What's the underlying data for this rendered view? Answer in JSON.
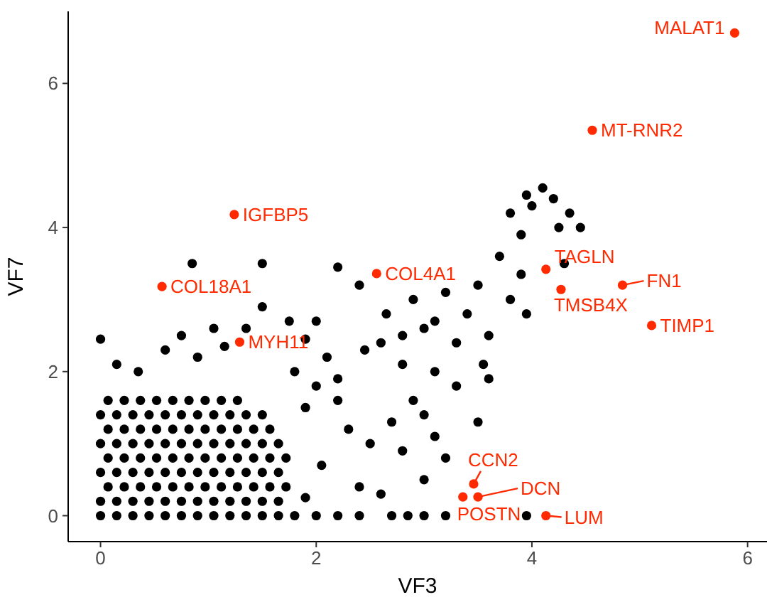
{
  "chart_data": {
    "type": "scatter",
    "xlabel": "VF3",
    "ylabel": "VF7",
    "xlim": [
      -0.3,
      6.18
    ],
    "ylim": [
      -0.36,
      7.0
    ],
    "xticks": [
      0,
      2,
      4,
      6
    ],
    "yticks": [
      0,
      2,
      4,
      6
    ],
    "grid": false,
    "marker": "circle",
    "series": [
      {
        "color": "#000000",
        "x": [
          0,
          0.15,
          0.3,
          0.45,
          0.6,
          0.75,
          0.9,
          1.05,
          1.2,
          1.35,
          1.5,
          1.65,
          0.07,
          0.22,
          0.37,
          0.52,
          0.67,
          0.82,
          0.97,
          1.12,
          1.27,
          1.42,
          1.57,
          1.72,
          0,
          0.15,
          0.3,
          0.45,
          0.6,
          0.75,
          0.9,
          1.05,
          1.2,
          1.35,
          1.5,
          1.65,
          0.07,
          0.22,
          0.37,
          0.52,
          0.67,
          0.82,
          0.97,
          1.12,
          1.27,
          1.42,
          1.57,
          1.72,
          0,
          0.15,
          0.3,
          0.45,
          0.6,
          0.75,
          0.9,
          1.05,
          1.2,
          1.35,
          1.5,
          1.65,
          0.07,
          0.22,
          0.37,
          0.52,
          0.67,
          0.82,
          0.97,
          1.12,
          1.27,
          1.42,
          1.57,
          0,
          0.15,
          0.3,
          0.45,
          0.6,
          0.75,
          0.9,
          1.05,
          1.2,
          1.35,
          1.5,
          0.07,
          0.22,
          0.37,
          0.52,
          0.67,
          0.82,
          0.97,
          1.12,
          1.27,
          0,
          0.15,
          0.3,
          0.45,
          0.6,
          0.75,
          0.9,
          1.05,
          1.2,
          1.35,
          1.5,
          1.65,
          1.8,
          2.0,
          2.2,
          2.4,
          2.7,
          3.0,
          3.2,
          2.85,
          3.95,
          0,
          0.15,
          0.35,
          0.6,
          0.75,
          0.9,
          1.05,
          1.15,
          1.35,
          1.5,
          1.75,
          0.85,
          1.5,
          1.9,
          2.0,
          2.1,
          1.8,
          2.0,
          2.2,
          1.9,
          2.3,
          2.5,
          2.7,
          2.8,
          3.0,
          2.4,
          2.05,
          2.6,
          1.9,
          2.2,
          2.45,
          2.4,
          2.65,
          2.8,
          2.9,
          3.0,
          3.1,
          3.2,
          3.3,
          3.4,
          3.5,
          3.6,
          3.7,
          3.9,
          4.0,
          4.1,
          4.2,
          4.25,
          4.35,
          3.8,
          4.3,
          3.6,
          3.3,
          3.1,
          2.8,
          2.6,
          2.2,
          3.9,
          3.95,
          3.5,
          3.1,
          2.9,
          3.2,
          3.0,
          3.55,
          3.8,
          4.45,
          3.95
        ],
        "values": [
          0.2,
          0.2,
          0.2,
          0.2,
          0.2,
          0.2,
          0.2,
          0.2,
          0.2,
          0.2,
          0.2,
          0.2,
          0.4,
          0.4,
          0.4,
          0.4,
          0.4,
          0.4,
          0.4,
          0.4,
          0.4,
          0.4,
          0.4,
          0.4,
          0.6,
          0.6,
          0.6,
          0.6,
          0.6,
          0.6,
          0.6,
          0.6,
          0.6,
          0.6,
          0.6,
          0.6,
          0.8,
          0.8,
          0.8,
          0.8,
          0.8,
          0.8,
          0.8,
          0.8,
          0.8,
          0.8,
          0.8,
          0.8,
          1.0,
          1.0,
          1.0,
          1.0,
          1.0,
          1.0,
          1.0,
          1.0,
          1.0,
          1.0,
          1.0,
          1.0,
          1.2,
          1.2,
          1.2,
          1.2,
          1.2,
          1.2,
          1.2,
          1.2,
          1.2,
          1.2,
          1.2,
          1.4,
          1.4,
          1.4,
          1.4,
          1.4,
          1.4,
          1.4,
          1.4,
          1.4,
          1.4,
          1.4,
          1.6,
          1.6,
          1.6,
          1.6,
          1.6,
          1.6,
          1.6,
          1.6,
          1.6,
          0,
          0,
          0,
          0,
          0,
          0,
          0,
          0,
          0,
          0,
          0,
          0,
          0,
          0,
          0,
          0,
          0,
          0,
          0,
          0,
          0,
          2.45,
          2.1,
          2.0,
          2.3,
          2.5,
          2.2,
          2.6,
          2.35,
          2.6,
          2.9,
          2.7,
          3.5,
          3.5,
          2.45,
          2.7,
          2.2,
          2.0,
          1.8,
          1.6,
          1.5,
          1.2,
          1.0,
          1.3,
          0.9,
          0.5,
          0.4,
          0.7,
          0.3,
          0.25,
          1.9,
          2.3,
          3.2,
          2.8,
          2.5,
          3.0,
          2.6,
          2.7,
          3.1,
          2.4,
          2.8,
          3.2,
          2.5,
          3.6,
          3.9,
          4.3,
          4.55,
          4.4,
          4.0,
          4.2,
          4.2,
          3.5,
          1.9,
          1.8,
          2.0,
          2.1,
          2.4,
          3.45,
          3.35,
          2.8,
          1.3,
          1.1,
          1.6,
          0.8,
          1.4,
          2.1,
          3.0,
          4.0,
          4.45
        ]
      },
      {
        "color": "#ff2a00",
        "x": [
          5.88,
          4.56,
          1.24,
          0.57,
          2.56,
          1.29,
          4.13,
          4.27,
          4.84,
          5.11,
          3.46,
          3.5,
          3.36,
          4.13
        ],
        "values": [
          6.7,
          5.35,
          4.18,
          3.18,
          3.36,
          2.41,
          3.42,
          3.14,
          3.2,
          2.64,
          0.44,
          0.26,
          0.26,
          0
        ]
      }
    ],
    "annotations": [
      {
        "text": "MALAT1",
        "x": 5.88,
        "y": 6.7
      },
      {
        "text": "MT-RNR2",
        "x": 4.56,
        "y": 5.35
      },
      {
        "text": "IGFBP5",
        "x": 1.24,
        "y": 4.18
      },
      {
        "text": "COL18A1",
        "x": 0.57,
        "y": 3.18
      },
      {
        "text": "COL4A1",
        "x": 2.56,
        "y": 3.36
      },
      {
        "text": "MYH11",
        "x": 1.29,
        "y": 2.41
      },
      {
        "text": "TAGLN",
        "x": 4.13,
        "y": 3.42
      },
      {
        "text": "TMSB4X",
        "x": 4.27,
        "y": 3.14
      },
      {
        "text": "FN1",
        "x": 4.84,
        "y": 3.2
      },
      {
        "text": "TIMP1",
        "x": 5.11,
        "y": 2.64
      },
      {
        "text": "CCN2",
        "x": 3.46,
        "y": 0.44
      },
      {
        "text": "DCN",
        "x": 3.5,
        "y": 0.26
      },
      {
        "text": "POSTN",
        "x": 3.36,
        "y": 0.26
      },
      {
        "text": "LUM",
        "x": 4.13,
        "y": 0
      }
    ]
  }
}
